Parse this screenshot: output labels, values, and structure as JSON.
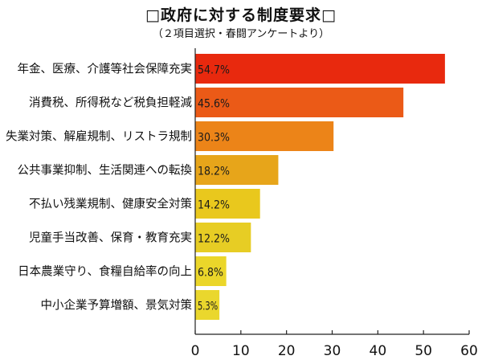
{
  "chart_data": {
    "type": "bar",
    "orientation": "horizontal",
    "title": "□政府に対する制度要求□",
    "subtitle": "（２項目選択・春闘アンケートより）",
    "categories": [
      "年金、医療、介護等社会保障充実",
      "消費税、所得税など税負担軽減",
      "失業対策、解雇規制、リストラ規制",
      "公共事業抑制、生活関連への転換",
      "不払い残業規制、健康安全対策",
      "児童手当改善、保育・教育充実",
      "日本農業守り、食糧自給率の向上",
      "中小企業予算増額、景気対策"
    ],
    "values": [
      54.7,
      45.6,
      30.3,
      18.2,
      14.2,
      12.2,
      6.8,
      5.3
    ],
    "value_labels": [
      "54.7%",
      "45.6%",
      "30.3%",
      "18.2%",
      "14.2%",
      "12.2%",
      "6.8%",
      "5.3%"
    ],
    "bar_colors": [
      "#e8290e",
      "#eb5a17",
      "#ec8418",
      "#e7a51a",
      "#e9c81d",
      "#e7cd24",
      "#ebd62a",
      "#ead72d"
    ],
    "xlim": [
      0,
      60
    ],
    "xticks": [
      0,
      10,
      20,
      30,
      40,
      50,
      60
    ],
    "xlabel": "",
    "ylabel": "",
    "grid": false,
    "legend": "none"
  }
}
